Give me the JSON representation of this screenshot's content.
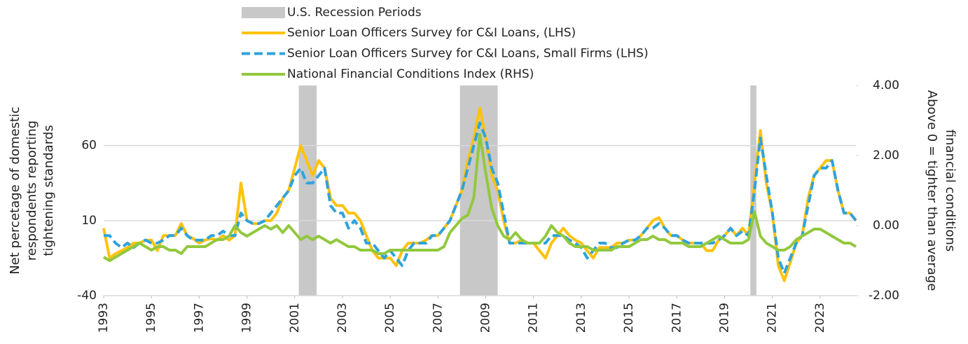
{
  "chart_data": {
    "type": "line",
    "x": [
      1993,
      1993.25,
      1993.5,
      1993.75,
      1994,
      1994.25,
      1994.5,
      1994.75,
      1995,
      1995.25,
      1995.5,
      1995.75,
      1996,
      1996.25,
      1996.5,
      1996.75,
      1997,
      1997.25,
      1997.5,
      1997.75,
      1998,
      1998.25,
      1998.5,
      1998.75,
      1999,
      1999.25,
      1999.5,
      1999.75,
      2000,
      2000.25,
      2000.5,
      2000.75,
      2001,
      2001.25,
      2001.5,
      2001.75,
      2002,
      2002.25,
      2002.5,
      2002.75,
      2003,
      2003.25,
      2003.5,
      2003.75,
      2004,
      2004.25,
      2004.5,
      2004.75,
      2005,
      2005.25,
      2005.5,
      2005.75,
      2006,
      2006.25,
      2006.5,
      2006.75,
      2007,
      2007.25,
      2007.5,
      2007.75,
      2008,
      2008.25,
      2008.5,
      2008.75,
      2009,
      2009.25,
      2009.5,
      2009.75,
      2010,
      2010.25,
      2010.5,
      2010.75,
      2011,
      2011.25,
      2011.5,
      2011.75,
      2012,
      2012.25,
      2012.5,
      2012.75,
      2013,
      2013.25,
      2013.5,
      2013.75,
      2014,
      2014.25,
      2014.5,
      2014.75,
      2015,
      2015.25,
      2015.5,
      2015.75,
      2016,
      2016.25,
      2016.5,
      2016.75,
      2017,
      2017.25,
      2017.5,
      2017.75,
      2018,
      2018.25,
      2018.5,
      2018.75,
      2019,
      2019.25,
      2019.5,
      2019.75,
      2020,
      2020.25,
      2020.5,
      2020.75,
      2021,
      2021.25,
      2021.5,
      2021.75,
      2022,
      2022.25,
      2022.5,
      2022.75,
      2023,
      2023.25,
      2023.5,
      2023.75,
      2024,
      2024.25,
      2024.5
    ],
    "series": [
      {
        "name": "Senior Loan Officers Survey for C&I Loans, (LHS)",
        "color": "#ffc20e",
        "dash": false,
        "values": [
          5,
          -15,
          -12,
          -10,
          -8,
          -5,
          -5,
          -3,
          -3,
          -10,
          0,
          0,
          0,
          8,
          0,
          -2,
          -5,
          -3,
          -2,
          -3,
          0,
          -3,
          0,
          35,
          10,
          8,
          8,
          10,
          10,
          15,
          25,
          30,
          45,
          60,
          50,
          40,
          50,
          45,
          25,
          20,
          20,
          15,
          15,
          10,
          0,
          -10,
          -15,
          -15,
          -15,
          -20,
          -10,
          -5,
          -5,
          -5,
          -3,
          0,
          0,
          5,
          10,
          20,
          30,
          50,
          65,
          85,
          65,
          40,
          30,
          10,
          -5,
          -5,
          -3,
          -5,
          -5,
          -10,
          -15,
          -5,
          0,
          5,
          0,
          -3,
          -5,
          -10,
          -15,
          -8,
          -8,
          -8,
          -5,
          -5,
          -3,
          -3,
          0,
          5,
          10,
          12,
          5,
          0,
          0,
          -3,
          -5,
          -5,
          -5,
          -10,
          -10,
          -3,
          0,
          5,
          0,
          5,
          0,
          35,
          70,
          35,
          15,
          -20,
          -30,
          -18,
          -5,
          0,
          25,
          40,
          45,
          50,
          50,
          30,
          15,
          15,
          10
        ]
      },
      {
        "name": "Senior Loan Officers Survey for C&I Loans, Small Firms (LHS)",
        "color": "#2fa3dc",
        "dash": true,
        "values": [
          0,
          0,
          -5,
          -8,
          -5,
          -8,
          -5,
          -3,
          -5,
          -5,
          -3,
          0,
          0,
          5,
          0,
          -3,
          -3,
          -3,
          0,
          0,
          3,
          0,
          0,
          15,
          10,
          8,
          8,
          10,
          15,
          20,
          25,
          30,
          40,
          45,
          35,
          35,
          40,
          45,
          20,
          15,
          15,
          5,
          10,
          5,
          -5,
          -5,
          -10,
          -15,
          -10,
          -15,
          -20,
          -10,
          -5,
          -5,
          -5,
          0,
          0,
          5,
          10,
          20,
          30,
          45,
          60,
          75,
          65,
          45,
          35,
          15,
          -5,
          -5,
          -5,
          -5,
          -5,
          -5,
          -5,
          0,
          0,
          0,
          -3,
          -5,
          -8,
          -15,
          -10,
          -5,
          -5,
          -8,
          -8,
          -5,
          -3,
          -3,
          0,
          5,
          5,
          8,
          5,
          0,
          0,
          -3,
          -5,
          -5,
          -5,
          -5,
          -5,
          -3,
          0,
          5,
          0,
          3,
          0,
          30,
          65,
          40,
          15,
          -15,
          -25,
          -15,
          -5,
          0,
          20,
          40,
          45,
          45,
          50,
          30,
          15,
          15,
          10
        ]
      },
      {
        "name": "National Financial Conditions Index (RHS)",
        "color": "#92c83e",
        "dash": false,
        "axis": "y2",
        "values": [
          -0.9,
          -1.0,
          -0.9,
          -0.8,
          -0.7,
          -0.6,
          -0.5,
          -0.6,
          -0.7,
          -0.6,
          -0.6,
          -0.7,
          -0.7,
          -0.8,
          -0.6,
          -0.6,
          -0.6,
          -0.6,
          -0.5,
          -0.4,
          -0.4,
          -0.3,
          0.0,
          -0.2,
          -0.3,
          -0.2,
          -0.1,
          0.0,
          -0.1,
          0.0,
          -0.2,
          0.0,
          -0.2,
          -0.4,
          -0.3,
          -0.4,
          -0.3,
          -0.4,
          -0.5,
          -0.4,
          -0.5,
          -0.6,
          -0.6,
          -0.7,
          -0.7,
          -0.7,
          -0.8,
          -0.8,
          -0.7,
          -0.7,
          -0.7,
          -0.7,
          -0.7,
          -0.7,
          -0.7,
          -0.7,
          -0.7,
          -0.6,
          -0.2,
          0.0,
          0.2,
          0.3,
          0.8,
          2.6,
          1.5,
          0.5,
          0.0,
          -0.3,
          -0.4,
          -0.2,
          -0.4,
          -0.5,
          -0.5,
          -0.5,
          -0.3,
          0.0,
          -0.2,
          -0.3,
          -0.5,
          -0.6,
          -0.6,
          -0.6,
          -0.7,
          -0.7,
          -0.7,
          -0.7,
          -0.6,
          -0.6,
          -0.6,
          -0.5,
          -0.4,
          -0.4,
          -0.3,
          -0.4,
          -0.4,
          -0.5,
          -0.5,
          -0.5,
          -0.6,
          -0.6,
          -0.6,
          -0.5,
          -0.4,
          -0.3,
          -0.4,
          -0.5,
          -0.5,
          -0.5,
          -0.4,
          0.4,
          -0.3,
          -0.5,
          -0.6,
          -0.7,
          -0.7,
          -0.6,
          -0.4,
          -0.3,
          -0.2,
          -0.1,
          -0.1,
          -0.2,
          -0.3,
          -0.4,
          -0.5,
          -0.5,
          -0.6
        ]
      }
    ],
    "recession_name": "U.S. Recession Periods",
    "recession_color": "#c8c8c8",
    "recessions": [
      [
        2001.17,
        2001.92
      ],
      [
        2007.92,
        2009.5
      ],
      [
        2020.08,
        2020.33
      ]
    ],
    "y_label": [
      "Net percetage of domestic",
      "respondents reporting",
      "tightening standards"
    ],
    "y2_label": [
      "Above 0 = tighter than average",
      "financial conditions"
    ],
    "xlim": [
      1993,
      2024.5
    ],
    "xticks": [
      1993,
      1995,
      1997,
      1999,
      2001,
      2003,
      2005,
      2007,
      2009,
      2011,
      2013,
      2015,
      2017,
      2019,
      2021,
      2023
    ],
    "ylim": [
      -40,
      100
    ],
    "yticks": [
      -40,
      10,
      60
    ],
    "y2lim": [
      -2,
      4
    ],
    "y2ticks": [
      {
        "value": -2,
        "label": "-2.00"
      },
      {
        "value": 0,
        "label": "0.00"
      },
      {
        "value": 2,
        "label": "2.00"
      },
      {
        "value": 4,
        "label": "4.00"
      }
    ],
    "grid": true
  }
}
